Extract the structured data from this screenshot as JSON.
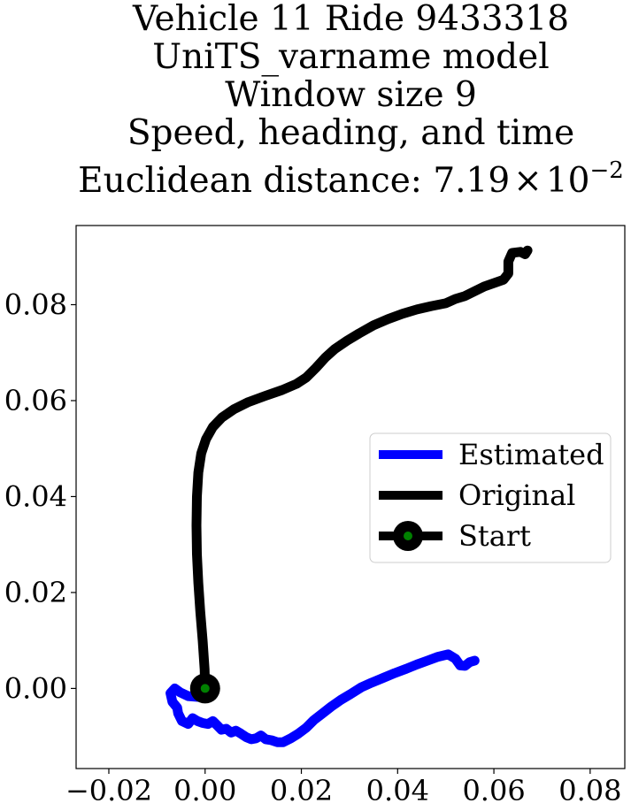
{
  "chart_data": {
    "type": "line",
    "title_lines": [
      "Vehicle 11 Ride 9433318",
      "UniTS_varname model",
      "Window size 9",
      "Speed, heading, and time"
    ],
    "title_metric_prefix": "Euclidean distance: ",
    "title_metric_mantissa": "7.19",
    "title_metric_times": "×",
    "title_metric_base": "10",
    "title_metric_exponent": "−2",
    "xlabel": "",
    "ylabel": "",
    "xlim": [
      -0.0268,
      0.0872
    ],
    "ylim": [
      -0.0167,
      0.0965
    ],
    "grid": false,
    "legend_position": "center-right",
    "x_ticks": [
      -0.02,
      0.0,
      0.02,
      0.04,
      0.06,
      0.08
    ],
    "x_tick_labels": [
      "−0.02",
      "0.00",
      "0.02",
      "0.04",
      "0.06",
      "0.08"
    ],
    "y_ticks": [
      0.0,
      0.02,
      0.04,
      0.06,
      0.08
    ],
    "y_tick_labels": [
      "0.00",
      "0.02",
      "0.04",
      "0.06",
      "0.08"
    ],
    "series": [
      {
        "name": "Estimated",
        "color": "#0000ff",
        "points": [
          [
            0.0,
            0.0
          ],
          [
            -0.0012,
            -0.0018
          ],
          [
            -0.0035,
            -0.0016
          ],
          [
            -0.0052,
            -0.0008
          ],
          [
            -0.0063,
            0.0
          ],
          [
            -0.0072,
            -0.001
          ],
          [
            -0.0068,
            -0.0028
          ],
          [
            -0.0058,
            -0.004
          ],
          [
            -0.0056,
            -0.0052
          ],
          [
            -0.0048,
            -0.0068
          ],
          [
            -0.0035,
            -0.0074
          ],
          [
            -0.0026,
            -0.0062
          ],
          [
            -0.0016,
            -0.0068
          ],
          [
            -0.0005,
            -0.0072
          ],
          [
            0.0006,
            -0.0074
          ],
          [
            0.0016,
            -0.0068
          ],
          [
            0.0026,
            -0.0078
          ],
          [
            0.0034,
            -0.0086
          ],
          [
            0.0044,
            -0.0084
          ],
          [
            0.0054,
            -0.0092
          ],
          [
            0.0064,
            -0.0088
          ],
          [
            0.0074,
            -0.0094
          ],
          [
            0.0086,
            -0.0102
          ],
          [
            0.0096,
            -0.0106
          ],
          [
            0.0106,
            -0.0104
          ],
          [
            0.0116,
            -0.0098
          ],
          [
            0.0126,
            -0.0106
          ],
          [
            0.0138,
            -0.0108
          ],
          [
            0.015,
            -0.0112
          ],
          [
            0.0162,
            -0.0112
          ],
          [
            0.0178,
            -0.0104
          ],
          [
            0.0194,
            -0.0094
          ],
          [
            0.021,
            -0.0082
          ],
          [
            0.0226,
            -0.0066
          ],
          [
            0.0244,
            -0.0052
          ],
          [
            0.0262,
            -0.0038
          ],
          [
            0.0282,
            -0.0024
          ],
          [
            0.0302,
            -0.0012
          ],
          [
            0.0324,
            0.0002
          ],
          [
            0.0346,
            0.0012
          ],
          [
            0.037,
            0.0022
          ],
          [
            0.0394,
            0.0032
          ],
          [
            0.0418,
            0.0041
          ],
          [
            0.044,
            0.005
          ],
          [
            0.0462,
            0.0058
          ],
          [
            0.0484,
            0.0066
          ],
          [
            0.0505,
            0.0071
          ],
          [
            0.052,
            0.0062
          ],
          [
            0.053,
            0.0048
          ],
          [
            0.054,
            0.0047
          ],
          [
            0.055,
            0.0055
          ],
          [
            0.056,
            0.0058
          ]
        ]
      },
      {
        "name": "Original",
        "color": "#000000",
        "points": [
          [
            0.0,
            0.0
          ],
          [
            -0.0001,
            0.004
          ],
          [
            -0.0005,
            0.01
          ],
          [
            -0.001,
            0.016
          ],
          [
            -0.0014,
            0.022
          ],
          [
            -0.0017,
            0.028
          ],
          [
            -0.0018,
            0.034
          ],
          [
            -0.0017,
            0.04
          ],
          [
            -0.0014,
            0.045
          ],
          [
            -0.0008,
            0.049
          ],
          [
            0.0002,
            0.052
          ],
          [
            0.0016,
            0.0545
          ],
          [
            0.0035,
            0.0565
          ],
          [
            0.006,
            0.0582
          ],
          [
            0.009,
            0.0597
          ],
          [
            0.0125,
            0.061
          ],
          [
            0.016,
            0.0622
          ],
          [
            0.019,
            0.0635
          ],
          [
            0.021,
            0.0648
          ],
          [
            0.023,
            0.0668
          ],
          [
            0.025,
            0.069
          ],
          [
            0.027,
            0.0708
          ],
          [
            0.0295,
            0.0725
          ],
          [
            0.032,
            0.074
          ],
          [
            0.035,
            0.0757
          ],
          [
            0.038,
            0.077
          ],
          [
            0.041,
            0.0781
          ],
          [
            0.044,
            0.079
          ],
          [
            0.047,
            0.0797
          ],
          [
            0.05,
            0.0803
          ],
          [
            0.052,
            0.0812
          ],
          [
            0.054,
            0.0818
          ],
          [
            0.056,
            0.0828
          ],
          [
            0.058,
            0.0838
          ],
          [
            0.062,
            0.0852
          ],
          [
            0.063,
            0.0865
          ],
          [
            0.063,
            0.089
          ],
          [
            0.0638,
            0.0908
          ],
          [
            0.0655,
            0.091
          ],
          [
            0.0665,
            0.0905
          ],
          [
            0.067,
            0.0913
          ]
        ]
      }
    ],
    "start_marker": {
      "name": "Start",
      "x": 0.0,
      "y": 0.0,
      "edge_color": "#000000",
      "face_color": "#008000"
    }
  }
}
